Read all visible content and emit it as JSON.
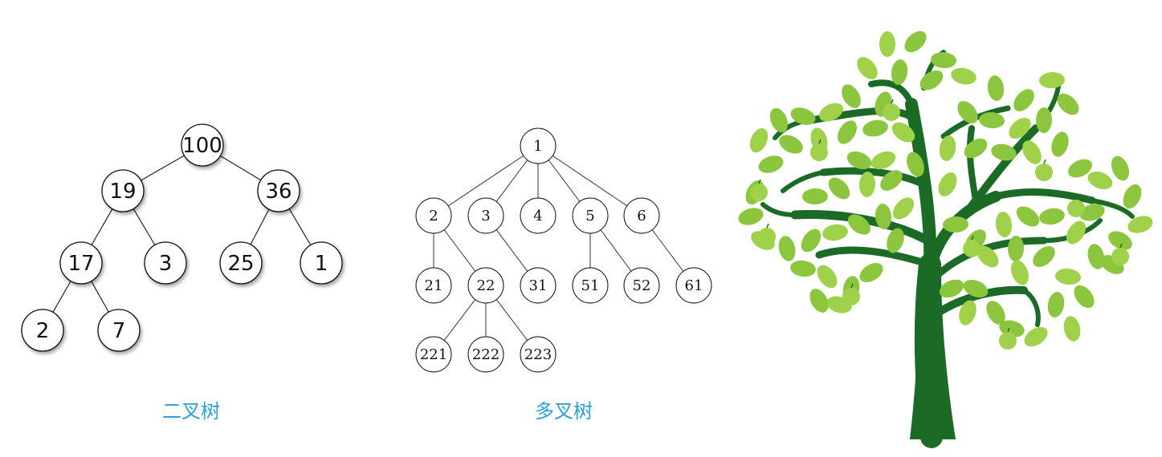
{
  "binary_tree": {
    "caption": "二叉树",
    "nodes": [
      {
        "id": "n100",
        "label": "100"
      },
      {
        "id": "n19",
        "label": "19"
      },
      {
        "id": "n36",
        "label": "36"
      },
      {
        "id": "n17",
        "label": "17"
      },
      {
        "id": "n3",
        "label": "3"
      },
      {
        "id": "n25",
        "label": "25"
      },
      {
        "id": "n1",
        "label": "1"
      },
      {
        "id": "n2",
        "label": "2"
      },
      {
        "id": "n7",
        "label": "7"
      }
    ],
    "edges": [
      [
        "n100",
        "n19"
      ],
      [
        "n100",
        "n36"
      ],
      [
        "n19",
        "n17"
      ],
      [
        "n19",
        "n3"
      ],
      [
        "n36",
        "n25"
      ],
      [
        "n36",
        "n1"
      ],
      [
        "n17",
        "n2"
      ],
      [
        "n17",
        "n7"
      ]
    ]
  },
  "multi_tree": {
    "caption": "多叉树",
    "nodes": [
      {
        "id": "m1",
        "label": "1"
      },
      {
        "id": "m2",
        "label": "2"
      },
      {
        "id": "m3",
        "label": "3"
      },
      {
        "id": "m4",
        "label": "4"
      },
      {
        "id": "m5",
        "label": "5"
      },
      {
        "id": "m6",
        "label": "6"
      },
      {
        "id": "m21",
        "label": "21"
      },
      {
        "id": "m22",
        "label": "22"
      },
      {
        "id": "m31",
        "label": "31"
      },
      {
        "id": "m51",
        "label": "51"
      },
      {
        "id": "m52",
        "label": "52"
      },
      {
        "id": "m61",
        "label": "61"
      },
      {
        "id": "m221",
        "label": "221"
      },
      {
        "id": "m222",
        "label": "222"
      },
      {
        "id": "m223",
        "label": "223"
      }
    ],
    "edges": [
      [
        "m1",
        "m2"
      ],
      [
        "m1",
        "m3"
      ],
      [
        "m1",
        "m4"
      ],
      [
        "m1",
        "m5"
      ],
      [
        "m1",
        "m6"
      ],
      [
        "m2",
        "m21"
      ],
      [
        "m2",
        "m22"
      ],
      [
        "m3",
        "m31"
      ],
      [
        "m5",
        "m51"
      ],
      [
        "m5",
        "m52"
      ],
      [
        "m6",
        "m61"
      ],
      [
        "m22",
        "m221"
      ],
      [
        "m22",
        "m222"
      ],
      [
        "m22",
        "m223"
      ]
    ]
  },
  "illustration": {
    "icon": "tree-illustration",
    "colors": {
      "trunk": "#1b6b27",
      "leaf": "#8cc63f",
      "leaf_light": "#9fd14a"
    }
  },
  "colors": {
    "caption": "#2a9fd8"
  }
}
